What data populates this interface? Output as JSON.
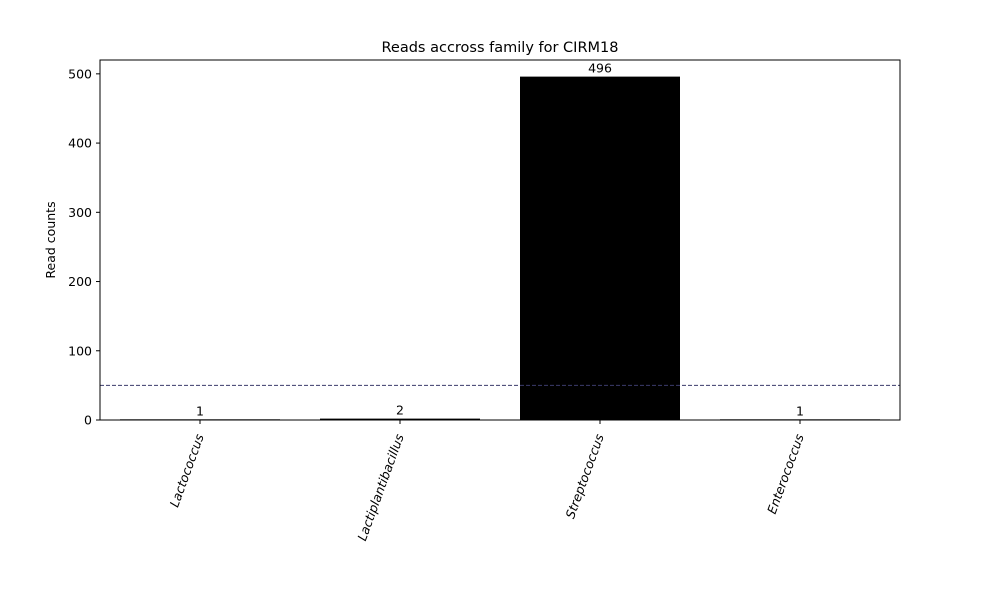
{
  "chart_data": {
    "type": "bar",
    "title": "Reads accross family for CIRM18",
    "xlabel": "",
    "ylabel": "Read counts",
    "categories": [
      "Lactococcus",
      "Lactiplantibacillus",
      "Streptococcus",
      "Enterococcus"
    ],
    "values": [
      1,
      2,
      496,
      1
    ],
    "data_labels": [
      "1",
      "2",
      "496",
      "1"
    ],
    "ylim": [
      0,
      520
    ],
    "yticks": [
      0,
      100,
      200,
      300,
      400,
      500
    ],
    "ytick_labels": [
      "0",
      "100",
      "200",
      "300",
      "400",
      "500"
    ],
    "threshold": 50,
    "grid": false,
    "legend": "none",
    "colors": {
      "bar": "#000000",
      "threshold_line": "#3b3b6b",
      "axes": "#000000"
    }
  }
}
